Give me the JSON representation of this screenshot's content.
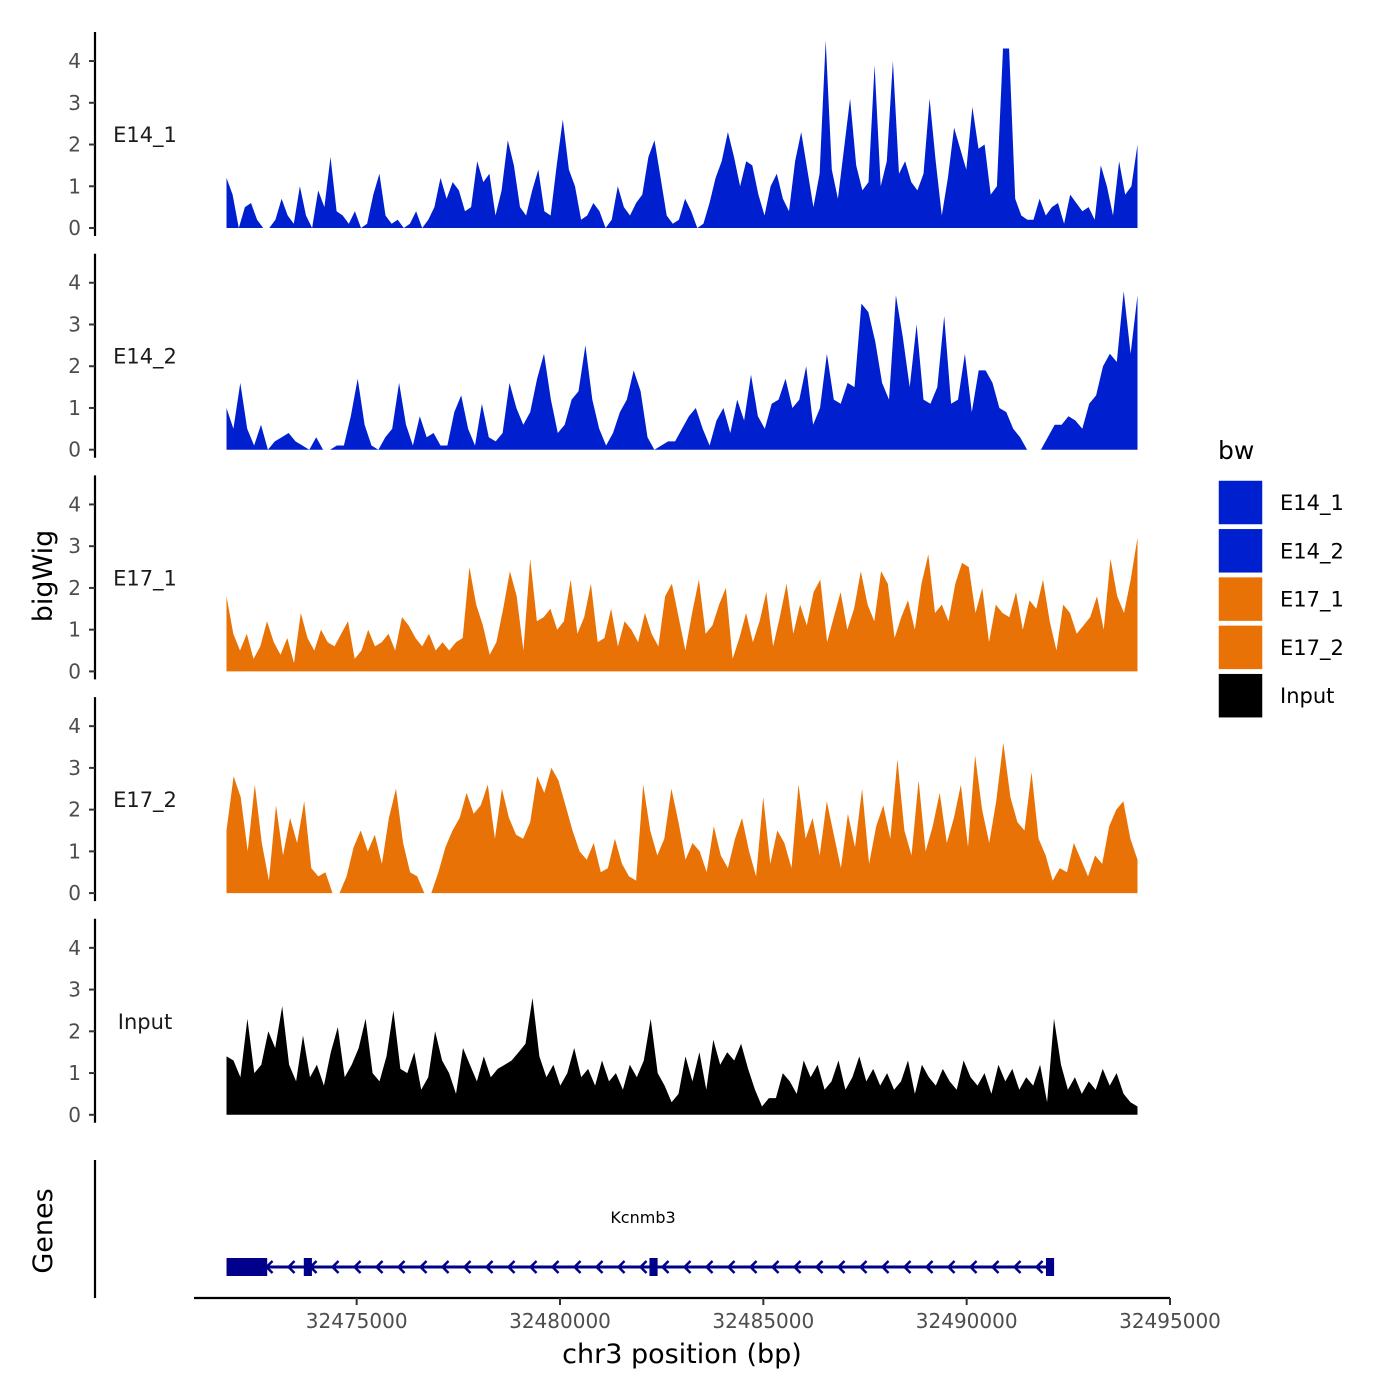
{
  "chart_data": {
    "type": "area",
    "ylabel": "bigWig",
    "xlabel": "chr3 position (bp)",
    "chromosome": "chr3",
    "xlim": [
      32471000,
      32495000
    ],
    "data_range": [
      32471800,
      32494200
    ],
    "ylim": [
      0,
      4.6
    ],
    "yticks": [
      0,
      1,
      2,
      3,
      4
    ],
    "xticks": [
      32475000,
      32480000,
      32485000,
      32490000,
      32495000
    ],
    "xtick_labels": [
      "32475000",
      "32480000",
      "32485000",
      "32490000",
      "32495000"
    ],
    "legend": {
      "title": "bw",
      "position": "right",
      "items": [
        {
          "label": "E14_1",
          "color": "#0020d0"
        },
        {
          "label": "E14_2",
          "color": "#0020d0"
        },
        {
          "label": "E17_1",
          "color": "#e87206"
        },
        {
          "label": "E17_2",
          "color": "#e87206"
        },
        {
          "label": "Input",
          "color": "#000000"
        }
      ]
    },
    "series": [
      {
        "name": "E14_1",
        "color": "#0020d0",
        "values": [
          1.2,
          0.8,
          0,
          0.5,
          0.6,
          0.2,
          0,
          0,
          0.2,
          0.7,
          0.3,
          0.1,
          1.0,
          0.3,
          0,
          0.9,
          0.5,
          1.7,
          0.4,
          0.3,
          0.1,
          0.4,
          0,
          0.1,
          0.8,
          1.3,
          0.3,
          0.1,
          0.2,
          0,
          0.1,
          0.4,
          0,
          0.2,
          0.5,
          1.2,
          0.7,
          1.1,
          0.9,
          0.4,
          0.5,
          1.6,
          1.1,
          1.3,
          0.3,
          0.9,
          2.1,
          1.5,
          0.5,
          0.3,
          0.9,
          1.4,
          0.4,
          0.3,
          1.5,
          2.6,
          1.4,
          1.0,
          0.2,
          0.3,
          0.6,
          0.4,
          0,
          0.2,
          1.0,
          0.5,
          0.3,
          0.6,
          0.8,
          1.7,
          2.1,
          1.2,
          0.3,
          0.1,
          0.2,
          0.7,
          0.4,
          0,
          0.1,
          0.6,
          1.2,
          1.6,
          2.3,
          1.7,
          1.0,
          1.6,
          1.5,
          0.8,
          0.3,
          1.0,
          1.3,
          0.7,
          0.4,
          1.6,
          2.3,
          1.4,
          0.5,
          1.3,
          4.5,
          1.4,
          0.7,
          1.9,
          3.1,
          1.5,
          0.9,
          1.1,
          3.9,
          1.0,
          1.6,
          4.0,
          1.3,
          1.6,
          1.1,
          0.9,
          1.3,
          3.1,
          1.6,
          0.3,
          1.2,
          2.4,
          1.9,
          1.4,
          2.9,
          1.9,
          2.0,
          0.8,
          1.0,
          4.3,
          4.3,
          0.7,
          0.3,
          0.2,
          0.2,
          0.7,
          0.3,
          0.5,
          0.6,
          0.1,
          0.8,
          0.6,
          0.4,
          0.5,
          0.2,
          1.5,
          1.0,
          0.3,
          1.6,
          0.8,
          1.0,
          2.0
        ]
      },
      {
        "name": "E14_2",
        "color": "#0020d0",
        "values": [
          1.0,
          0.5,
          1.6,
          0.5,
          0.1,
          0.6,
          0,
          0.2,
          0.3,
          0.4,
          0.2,
          0.1,
          0,
          0.3,
          0,
          0,
          0.1,
          0.1,
          0.8,
          1.7,
          0.6,
          0.1,
          0,
          0.3,
          0.5,
          1.6,
          0.6,
          0.1,
          0.8,
          0.3,
          0.4,
          0.1,
          0.1,
          0.9,
          1.3,
          0.5,
          0.1,
          1.1,
          0.3,
          0.2,
          0.4,
          1.6,
          1.0,
          0.6,
          0.9,
          1.7,
          2.3,
          1.2,
          0.4,
          0.6,
          1.2,
          1.4,
          2.5,
          1.2,
          0.5,
          0.1,
          0.4,
          0.9,
          1.2,
          1.9,
          1.4,
          0.3,
          0,
          0.1,
          0.2,
          0.2,
          0.5,
          0.8,
          1.0,
          0.5,
          0.1,
          0.7,
          1.0,
          0.4,
          1.2,
          0.7,
          1.8,
          0.8,
          0.5,
          1.1,
          1.2,
          1.7,
          1.0,
          1.2,
          2.0,
          0.6,
          1.0,
          2.3,
          1.2,
          1.1,
          1.6,
          1.5,
          3.5,
          3.3,
          2.6,
          1.6,
          1.2,
          3.7,
          2.7,
          1.5,
          3.0,
          1.2,
          1.1,
          1.5,
          3.2,
          1.1,
          1.2,
          2.3,
          0.9,
          1.9,
          1.9,
          1.6,
          1.0,
          0.9,
          0.5,
          0.3,
          0,
          0,
          0,
          0.3,
          0.6,
          0.6,
          0.8,
          0.7,
          0.5,
          1.1,
          1.3,
          2.0,
          2.3,
          2.1,
          3.8,
          2.3,
          3.7
        ]
      },
      {
        "name": "E17_1",
        "color": "#e87206",
        "values": [
          1.8,
          0.9,
          0.5,
          0.9,
          0.3,
          0.6,
          1.2,
          0.7,
          0.4,
          0.8,
          0.2,
          1.4,
          0.8,
          0.5,
          1.0,
          0.7,
          0.6,
          0.9,
          1.2,
          0.3,
          0.5,
          1.0,
          0.6,
          0.7,
          0.9,
          0.5,
          1.3,
          1.1,
          0.8,
          0.6,
          0.9,
          0.5,
          0.7,
          0.5,
          0.7,
          0.8,
          2.5,
          1.6,
          1.1,
          0.4,
          0.7,
          1.5,
          2.4,
          1.8,
          0.5,
          2.7,
          1.2,
          1.3,
          1.5,
          1.0,
          1.2,
          2.2,
          0.9,
          1.3,
          2.1,
          0.7,
          0.8,
          1.5,
          0.6,
          1.2,
          1.0,
          0.7,
          1.4,
          0.9,
          0.6,
          1.8,
          2.1,
          1.3,
          0.5,
          1.4,
          2.2,
          0.9,
          1.1,
          1.6,
          2.0,
          0.3,
          0.8,
          1.4,
          0.7,
          1.2,
          1.9,
          0.6,
          1.3,
          2.1,
          0.9,
          1.6,
          1.1,
          1.9,
          2.2,
          0.7,
          1.3,
          1.9,
          1.0,
          1.5,
          2.4,
          1.6,
          1.2,
          2.4,
          2.1,
          0.8,
          1.3,
          1.7,
          1.0,
          2.1,
          2.8,
          1.4,
          1.6,
          1.2,
          2.1,
          2.6,
          2.5,
          1.4,
          2.0,
          0.7,
          1.6,
          1.4,
          1.3,
          1.9,
          1.0,
          1.7,
          1.5,
          2.2,
          1.2,
          0.5,
          1.6,
          1.4,
          0.9,
          1.1,
          1.3,
          1.8,
          1.0,
          2.7,
          1.8,
          1.4,
          2.2,
          3.2
        ]
      },
      {
        "name": "E17_2",
        "color": "#e87206",
        "values": [
          1.5,
          2.8,
          2.3,
          1.0,
          2.6,
          1.2,
          0.3,
          2.1,
          0.9,
          1.8,
          1.2,
          2.2,
          0.6,
          0.4,
          0.5,
          0,
          0,
          0.4,
          1.1,
          1.5,
          1.0,
          1.4,
          0.7,
          1.8,
          2.5,
          1.2,
          0.5,
          0.4,
          0,
          0,
          0.5,
          1.1,
          1.5,
          1.8,
          2.4,
          1.9,
          2.1,
          2.6,
          1.3,
          2.5,
          1.8,
          1.4,
          1.3,
          1.7,
          2.8,
          2.4,
          3.0,
          2.7,
          2.1,
          1.5,
          1.0,
          0.8,
          1.2,
          0.5,
          0.6,
          1.3,
          0.7,
          0.4,
          0.3,
          2.6,
          1.5,
          0.9,
          1.3,
          2.5,
          1.7,
          0.8,
          1.2,
          1.0,
          0.5,
          1.6,
          0.9,
          0.6,
          1.3,
          1.8,
          1.0,
          0.4,
          2.3,
          0.7,
          1.5,
          1.2,
          0.6,
          2.6,
          1.3,
          1.8,
          0.9,
          2.2,
          1.4,
          0.6,
          1.9,
          1.1,
          2.5,
          0.7,
          1.6,
          2.1,
          1.3,
          3.2,
          1.5,
          0.9,
          2.7,
          1.0,
          1.6,
          2.4,
          1.2,
          1.8,
          2.6,
          1.1,
          3.3,
          2.0,
          1.2,
          2.2,
          3.6,
          2.3,
          1.7,
          1.5,
          2.9,
          1.3,
          0.9,
          0.3,
          0.6,
          0.5,
          1.2,
          0.8,
          0.4,
          0.9,
          0.7,
          1.6,
          2.0,
          2.2,
          1.3,
          0.8
        ]
      },
      {
        "name": "Input",
        "color": "#000000",
        "values": [
          1.4,
          1.3,
          0.9,
          2.3,
          1.0,
          1.2,
          2.0,
          1.6,
          2.6,
          1.2,
          0.8,
          1.9,
          0.9,
          1.2,
          0.7,
          1.5,
          2.1,
          0.9,
          1.2,
          1.6,
          2.3,
          1.0,
          0.8,
          1.4,
          2.5,
          1.1,
          1.0,
          1.5,
          0.6,
          0.9,
          2.0,
          1.3,
          1.0,
          0.5,
          1.6,
          1.2,
          0.8,
          1.4,
          0.9,
          1.1,
          1.2,
          1.3,
          1.5,
          1.7,
          2.8,
          1.4,
          0.9,
          1.2,
          0.7,
          1.0,
          1.6,
          0.9,
          1.1,
          0.7,
          1.3,
          0.8,
          1.0,
          0.6,
          1.2,
          0.9,
          1.3,
          2.3,
          1.0,
          0.7,
          0.3,
          0.5,
          1.4,
          0.8,
          1.5,
          0.6,
          1.8,
          1.2,
          1.5,
          1.3,
          1.7,
          1.1,
          0.6,
          0.2,
          0.4,
          0.4,
          1.0,
          0.8,
          0.5,
          1.3,
          0.9,
          1.2,
          0.6,
          0.8,
          1.3,
          0.6,
          0.9,
          1.4,
          0.8,
          1.1,
          0.7,
          1.0,
          0.6,
          0.8,
          1.3,
          0.5,
          1.2,
          0.9,
          0.7,
          1.1,
          0.8,
          0.6,
          1.3,
          0.9,
          0.7,
          1.0,
          0.5,
          1.2,
          0.8,
          1.1,
          0.6,
          0.9,
          0.7,
          1.2,
          0.3,
          2.3,
          1.2,
          0.6,
          0.9,
          0.5,
          0.8,
          0.6,
          1.1,
          0.7,
          1.0,
          0.5,
          0.3,
          0.2
        ]
      }
    ],
    "gene": {
      "name": "Kcnmb3",
      "track_label": "Genes",
      "start": 32471800,
      "end": 32492100,
      "strand": "-",
      "exons": [
        [
          32471800,
          32472800
        ],
        [
          32473700,
          32473900
        ],
        [
          32482200,
          32482400
        ],
        [
          32491950,
          32492150
        ]
      ],
      "color": "#00008b"
    }
  }
}
